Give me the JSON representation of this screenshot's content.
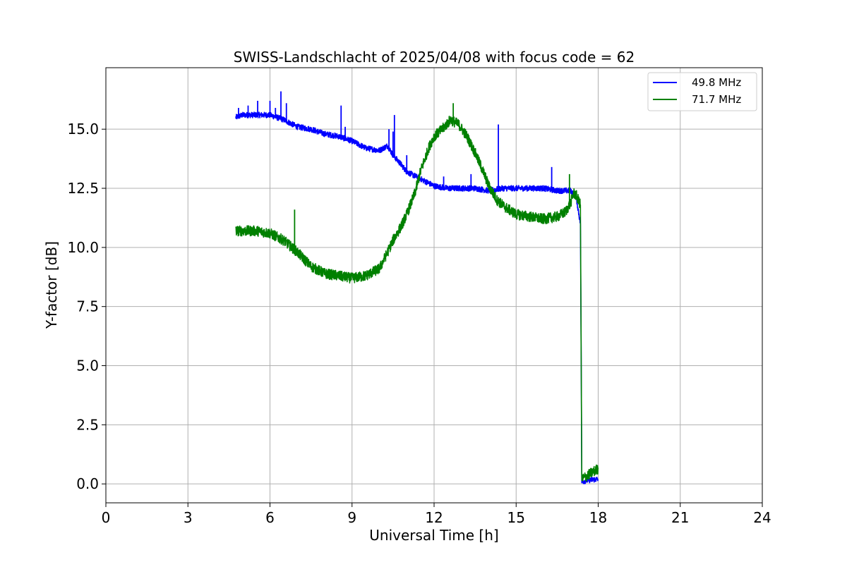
{
  "chart_data": {
    "type": "line",
    "title": "SWISS-Landschlacht of 2025/04/08 with focus code = 62",
    "xlabel": "Universal Time [h]",
    "ylabel": "Y-factor [dB]",
    "xlim": [
      0,
      24
    ],
    "ylim": [
      -0.8,
      17.6
    ],
    "x_ticks": [
      0,
      3,
      6,
      9,
      12,
      15,
      18,
      21,
      24
    ],
    "x_tick_labels": [
      "0",
      "3",
      "6",
      "9",
      "12",
      "15",
      "18",
      "21",
      "24"
    ],
    "y_ticks": [
      0,
      2.5,
      5,
      7.5,
      10,
      12.5,
      15
    ],
    "y_tick_labels": [
      "0.0",
      "2.5",
      "5.0",
      "7.5",
      "10.0",
      "12.5",
      "15.0"
    ],
    "grid": true,
    "legend_position": "top-right",
    "series": [
      {
        "name": "49.8 MHz",
        "color": "#0000ff",
        "noise": 0.12,
        "x": [
          4.75,
          5.0,
          5.5,
          6.0,
          6.5,
          7.0,
          7.5,
          8.0,
          8.5,
          9.0,
          9.5,
          10.0,
          10.3,
          10.5,
          10.8,
          11.0,
          11.5,
          12.0,
          12.5,
          13.0,
          13.5,
          14.0,
          14.5,
          15.0,
          15.5,
          16.0,
          16.5,
          17.0,
          17.2,
          17.35,
          17.38,
          17.4,
          17.6,
          17.8,
          18.0
        ],
        "y": [
          15.5,
          15.6,
          15.6,
          15.6,
          15.4,
          15.1,
          15.0,
          14.8,
          14.7,
          14.5,
          14.2,
          14.1,
          14.3,
          13.9,
          13.5,
          13.2,
          12.9,
          12.6,
          12.5,
          12.5,
          12.5,
          12.4,
          12.5,
          12.5,
          12.5,
          12.5,
          12.4,
          12.4,
          12.1,
          11.0,
          5.0,
          0.1,
          0.15,
          0.18,
          0.2
        ]
      },
      {
        "name": "71.7 MHz",
        "color": "#008000",
        "noise": 0.22,
        "x": [
          4.75,
          5.0,
          5.5,
          6.0,
          6.5,
          7.0,
          7.5,
          8.0,
          8.5,
          9.0,
          9.5,
          10.0,
          10.3,
          10.5,
          10.8,
          11.0,
          11.3,
          11.5,
          11.8,
          12.0,
          12.3,
          12.6,
          12.9,
          13.2,
          13.5,
          13.8,
          14.0,
          14.3,
          14.6,
          15.0,
          15.5,
          16.0,
          16.5,
          16.8,
          17.0,
          17.1,
          17.2,
          17.35,
          17.38,
          17.4,
          17.6,
          17.8,
          18.0
        ],
        "y": [
          10.7,
          10.7,
          10.7,
          10.6,
          10.3,
          9.8,
          9.2,
          8.9,
          8.8,
          8.7,
          8.8,
          9.1,
          9.8,
          10.3,
          10.9,
          11.4,
          12.3,
          13.2,
          14.2,
          14.7,
          15.0,
          15.4,
          15.2,
          14.7,
          14.0,
          13.2,
          12.6,
          12.0,
          11.7,
          11.4,
          11.3,
          11.2,
          11.3,
          11.5,
          11.9,
          12.3,
          12.2,
          11.8,
          5.0,
          0.2,
          0.35,
          0.5,
          0.65
        ]
      }
    ],
    "spikes": [
      {
        "series": 0,
        "x": 4.85,
        "y": 15.9
      },
      {
        "series": 0,
        "x": 5.2,
        "y": 16.0
      },
      {
        "series": 0,
        "x": 5.55,
        "y": 16.2
      },
      {
        "series": 0,
        "x": 6.0,
        "y": 16.2
      },
      {
        "series": 0,
        "x": 6.2,
        "y": 15.9
      },
      {
        "series": 0,
        "x": 6.4,
        "y": 16.6
      },
      {
        "series": 0,
        "x": 6.6,
        "y": 16.1
      },
      {
        "series": 0,
        "x": 8.6,
        "y": 16.0
      },
      {
        "series": 0,
        "x": 8.75,
        "y": 15.1
      },
      {
        "series": 0,
        "x": 10.35,
        "y": 15.0
      },
      {
        "series": 0,
        "x": 10.5,
        "y": 14.9
      },
      {
        "series": 0,
        "x": 10.55,
        "y": 15.6
      },
      {
        "series": 0,
        "x": 11.0,
        "y": 13.9
      },
      {
        "series": 0,
        "x": 12.35,
        "y": 13.0
      },
      {
        "series": 0,
        "x": 13.35,
        "y": 13.1
      },
      {
        "series": 0,
        "x": 14.35,
        "y": 15.2
      },
      {
        "series": 0,
        "x": 16.3,
        "y": 13.4
      },
      {
        "series": 1,
        "x": 6.9,
        "y": 11.6
      },
      {
        "series": 1,
        "x": 12.7,
        "y": 16.1
      },
      {
        "series": 1,
        "x": 16.95,
        "y": 13.1
      }
    ]
  }
}
